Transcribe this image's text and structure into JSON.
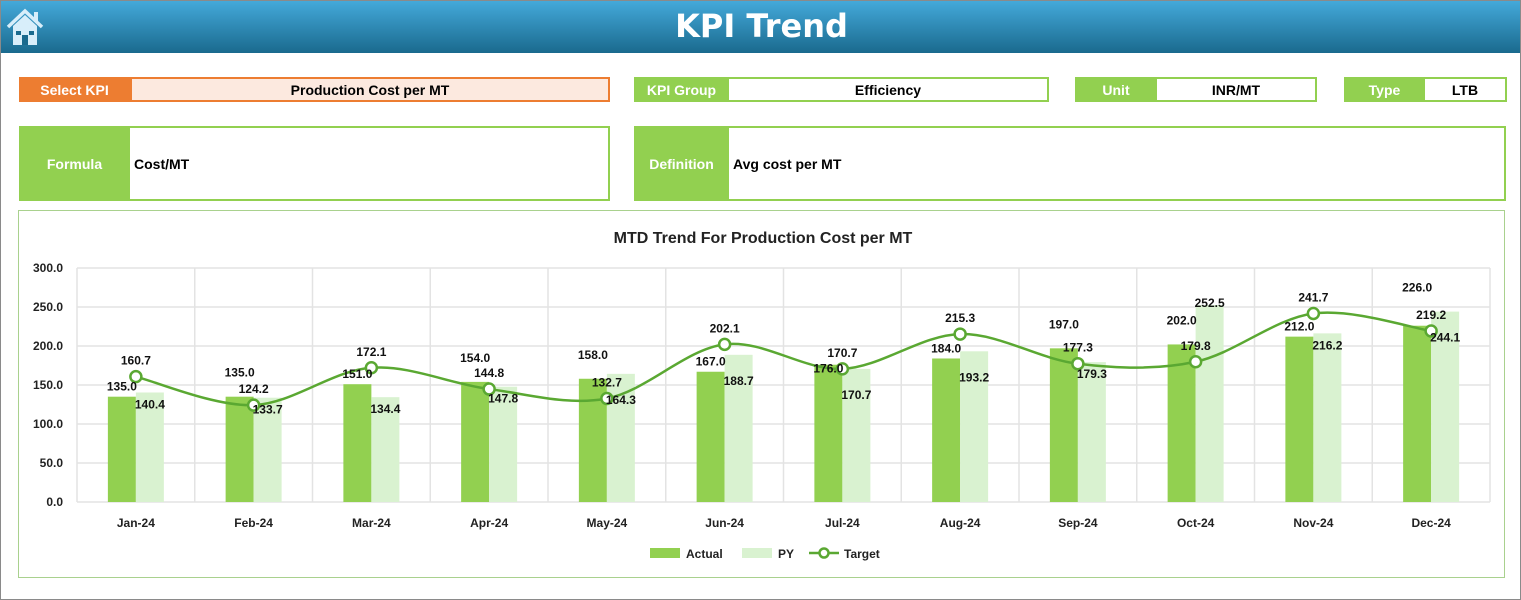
{
  "header": {
    "title": "KPI Trend",
    "home_icon": "home-icon"
  },
  "fields": {
    "select_kpi": {
      "label": "Select KPI",
      "value": "Production Cost per MT"
    },
    "kpi_group": {
      "label": "KPI Group",
      "value": "Efficiency"
    },
    "unit": {
      "label": "Unit",
      "value": "INR/MT"
    },
    "type": {
      "label": "Type",
      "value": "LTB"
    },
    "formula": {
      "label": "Formula",
      "value": "Cost/MT"
    },
    "definition": {
      "label": "Definition",
      "value": "Avg cost per MT"
    }
  },
  "colors": {
    "header": "#1a6a8e",
    "orange": "#ed7d31",
    "green": "#92d050",
    "actual": "#92d050",
    "py": "#d9f2d0",
    "target": "#5aa832"
  },
  "chart_data": {
    "type": "bar+line",
    "title": "MTD Trend For Production Cost per MT",
    "categories": [
      "Jan-24",
      "Feb-24",
      "Mar-24",
      "Apr-24",
      "May-24",
      "Jun-24",
      "Jul-24",
      "Aug-24",
      "Sep-24",
      "Oct-24",
      "Nov-24",
      "Dec-24"
    ],
    "ylim": [
      0,
      300
    ],
    "yticks": [
      "0.0",
      "50.0",
      "100.0",
      "150.0",
      "200.0",
      "250.0",
      "300.0"
    ],
    "grid": true,
    "legend": "bottom",
    "series": [
      {
        "name": "Actual",
        "type": "bar",
        "values": [
          135.0,
          135.0,
          151.0,
          154.0,
          158.0,
          167.0,
          176.0,
          184.0,
          197.0,
          202.0,
          212.0,
          226.0
        ]
      },
      {
        "name": "PY",
        "type": "bar",
        "values": [
          140.4,
          133.7,
          134.4,
          147.8,
          164.3,
          188.7,
          170.7,
          193.2,
          179.3,
          252.5,
          216.2,
          244.1
        ]
      },
      {
        "name": "Target",
        "type": "line",
        "values": [
          160.7,
          124.2,
          172.1,
          144.8,
          132.7,
          202.1,
          170.7,
          215.3,
          177.3,
          179.8,
          241.7,
          219.2
        ]
      }
    ]
  }
}
